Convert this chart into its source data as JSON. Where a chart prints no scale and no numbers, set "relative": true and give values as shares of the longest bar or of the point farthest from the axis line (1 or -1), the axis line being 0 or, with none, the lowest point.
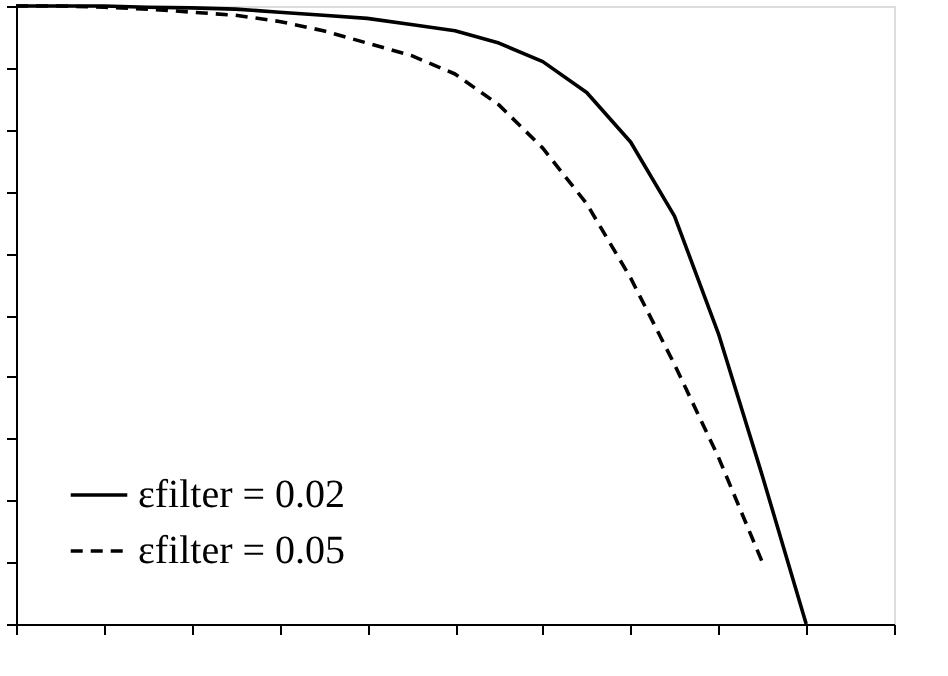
{
  "chart_data": {
    "type": "line",
    "relative": true,
    "tick_labels": false,
    "grid": false,
    "legend": "bottom left",
    "categories": [
      null,
      null,
      null,
      null,
      null,
      null,
      null,
      null,
      null,
      null,
      null,
      null,
      null,
      null,
      null,
      null,
      null,
      null,
      null,
      null,
      null
    ],
    "series": [
      {
        "name": "εfilter = 0.02",
        "color": "#000000",
        "line_style": "solid",
        "values": [
          1.0,
          1.0,
          1.0,
          0.998,
          0.997,
          0.995,
          0.99,
          0.985,
          0.98,
          0.97,
          0.96,
          0.94,
          0.91,
          0.86,
          0.78,
          0.66,
          0.47,
          0.24,
          0.0,
          null,
          null
        ]
      },
      {
        "name": "εfilter = 0.05",
        "color": "#000000",
        "line_style": "dashed",
        "values": [
          1.0,
          1.0,
          0.998,
          0.995,
          0.99,
          0.985,
          0.975,
          0.96,
          0.94,
          0.92,
          0.89,
          0.84,
          0.77,
          0.68,
          0.56,
          0.42,
          0.27,
          0.1,
          null,
          null,
          null
        ]
      }
    ]
  }
}
